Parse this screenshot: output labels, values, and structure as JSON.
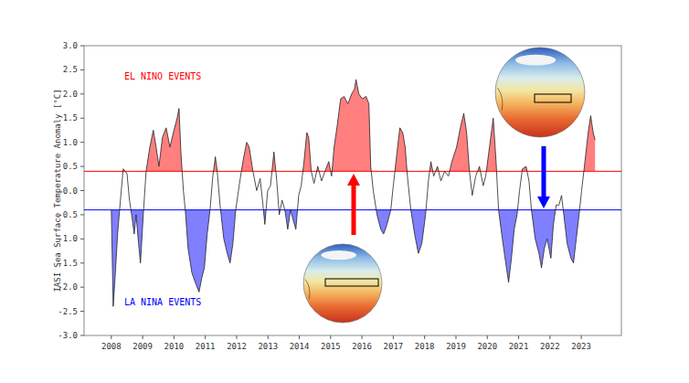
{
  "chart_data": {
    "type": "line",
    "y_label": "IASI Sea Surface Temperature Anomaly [°C]",
    "color": "#222222",
    "grid": false,
    "xlim": [
      2007.13,
      2024.28
    ],
    "xticks": [
      2008,
      2009,
      2010,
      2011,
      2012,
      2013,
      2014,
      2015,
      2016,
      2017,
      2018,
      2019,
      2020,
      2021,
      2022,
      2023
    ],
    "ylim": [
      -3,
      3
    ],
    "yticks": [
      {
        "value": -3,
        "label": "-3.0"
      },
      -2.5,
      {
        "value": -2,
        "label": "-2.0"
      },
      -1.5,
      {
        "value": -1,
        "label": "-1.0"
      },
      -0.5,
      {
        "value": 0,
        "label": "0.0"
      },
      0.5,
      {
        "value": 1,
        "label": "1.0"
      },
      1.5,
      {
        "value": 2,
        "label": "2.0"
      },
      2.5,
      {
        "value": 3,
        "label": "3.0"
      }
    ],
    "annotations": [
      {
        "text": "EL NINO EVENTS",
        "threshold": 0.4,
        "color": "#ff0000"
      },
      {
        "text": "LA NINA EVENTS",
        "threshold": -0.4,
        "color": "#0000ff"
      }
    ],
    "x": [
      2008.0,
      2008.06,
      2008.12,
      2008.2,
      2008.29,
      2008.38,
      2008.5,
      2008.58,
      2008.67,
      2008.73,
      2008.79,
      2008.87,
      2008.93,
      2009.02,
      2009.11,
      2009.23,
      2009.34,
      2009.43,
      2009.52,
      2009.63,
      2009.75,
      2009.87,
      2009.98,
      2010.1,
      2010.16,
      2010.22,
      2010.3,
      2010.36,
      2010.45,
      2010.57,
      2010.68,
      2010.8,
      2010.89,
      2010.97,
      2011.06,
      2011.15,
      2011.24,
      2011.32,
      2011.38,
      2011.47,
      2011.59,
      2011.7,
      2011.79,
      2011.88,
      2011.97,
      2012.08,
      2012.2,
      2012.32,
      2012.4,
      2012.52,
      2012.64,
      2012.75,
      2012.84,
      2012.9,
      2012.99,
      2013.08,
      2013.19,
      2013.28,
      2013.36,
      2013.45,
      2013.54,
      2013.63,
      2013.72,
      2013.8,
      2013.89,
      2013.98,
      2014.06,
      2014.15,
      2014.24,
      2014.3,
      2014.38,
      2014.47,
      2014.59,
      2014.71,
      2014.82,
      2014.94,
      2015.03,
      2015.11,
      2015.2,
      2015.32,
      2015.43,
      2015.55,
      2015.67,
      2015.76,
      2015.81,
      2015.9,
      2016.01,
      2016.13,
      2016.22,
      2016.28,
      2016.36,
      2016.48,
      2016.6,
      2016.69,
      2016.8,
      2016.92,
      2017.0,
      2017.12,
      2017.21,
      2017.3,
      2017.38,
      2017.45,
      2017.56,
      2017.68,
      2017.8,
      2017.91,
      2018.03,
      2018.12,
      2018.2,
      2018.29,
      2018.41,
      2018.52,
      2018.64,
      2018.76,
      2018.87,
      2019.02,
      2019.14,
      2019.25,
      2019.34,
      2019.43,
      2019.52,
      2019.63,
      2019.75,
      2019.87,
      2019.95,
      2020.07,
      2020.19,
      2020.28,
      2020.36,
      2020.48,
      2020.59,
      2020.68,
      2020.77,
      2020.86,
      2020.95,
      2021.03,
      2021.12,
      2021.24,
      2021.33,
      2021.41,
      2021.53,
      2021.65,
      2021.73,
      2021.82,
      2021.91,
      2022.03,
      2022.11,
      2022.2,
      2022.29,
      2022.37,
      2022.46,
      2022.55,
      2022.67,
      2022.75,
      2022.84,
      2022.93,
      2023.01,
      2023.1,
      2023.22,
      2023.3,
      2023.38,
      2023.44
    ],
    "values": [
      -0.4,
      -2.4,
      -1.8,
      -0.9,
      -0.2,
      0.45,
      0.35,
      -0.2,
      -0.6,
      -0.9,
      -0.5,
      -1.1,
      -1.5,
      -0.5,
      0.4,
      0.9,
      1.25,
      0.9,
      0.5,
      1.1,
      1.3,
      0.9,
      1.2,
      1.5,
      1.7,
      0.8,
      0.0,
      -0.4,
      -1.2,
      -1.7,
      -1.9,
      -2.1,
      -1.8,
      -1.6,
      -0.9,
      -0.4,
      0.3,
      0.7,
      0.4,
      -0.3,
      -1.0,
      -1.3,
      -1.5,
      -1.1,
      -0.4,
      0.1,
      0.6,
      1.0,
      0.9,
      0.4,
      0.0,
      0.25,
      -0.3,
      -0.7,
      0.0,
      0.1,
      0.8,
      0.2,
      -0.5,
      -0.2,
      -0.4,
      -0.8,
      -0.4,
      -0.6,
      -0.8,
      -0.1,
      0.1,
      0.6,
      1.2,
      1.1,
      0.4,
      0.15,
      0.5,
      0.2,
      0.4,
      0.6,
      0.3,
      0.9,
      1.3,
      1.9,
      1.95,
      1.8,
      2.0,
      2.1,
      2.3,
      2.0,
      1.9,
      1.95,
      1.8,
      0.5,
      0.0,
      -0.5,
      -0.8,
      -0.9,
      -0.7,
      -0.4,
      0.1,
      0.8,
      1.3,
      1.2,
      0.9,
      0.3,
      -0.4,
      -0.9,
      -1.3,
      -1.1,
      -0.5,
      0.2,
      0.6,
      0.3,
      0.5,
      0.2,
      0.4,
      0.3,
      0.6,
      0.9,
      1.3,
      1.6,
      1.2,
      0.4,
      -0.1,
      0.3,
      0.5,
      0.1,
      0.3,
      0.9,
      1.5,
      0.6,
      -0.4,
      -1.0,
      -1.5,
      -1.9,
      -1.4,
      -0.8,
      -0.5,
      0.0,
      0.45,
      0.5,
      0.2,
      -0.4,
      -1.0,
      -1.3,
      -1.6,
      -1.2,
      -1.0,
      -1.4,
      -0.7,
      -0.3,
      -0.3,
      -0.1,
      -0.6,
      -1.1,
      -1.4,
      -1.5,
      -1.0,
      -0.5,
      0.0,
      0.5,
      1.2,
      1.55,
      1.2,
      1.05
    ]
  }
}
